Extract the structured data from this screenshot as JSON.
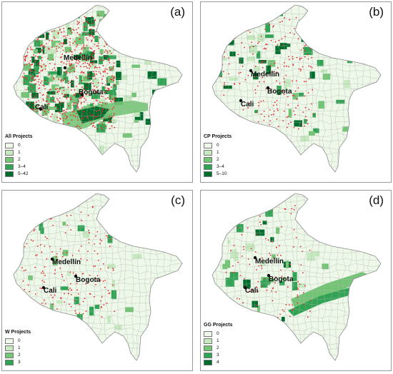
{
  "panels": [
    {
      "label": "(a)",
      "legend_title": "All Projects",
      "legend": [
        {
          "label": "0",
          "color": "#edf8e9"
        },
        {
          "label": "1",
          "color": "#c7e9c0"
        },
        {
          "label": "2",
          "color": "#74c476"
        },
        {
          "label": "3–4",
          "color": "#31a354"
        },
        {
          "label": "5–42",
          "color": "#006d2c"
        }
      ],
      "cities": [
        "Medellín",
        "Bogota",
        "Cali"
      ],
      "level": 0.9,
      "red_density": 0.85,
      "amazon": "patchy"
    },
    {
      "label": "(b)",
      "legend_title": "CP Projects",
      "legend": [
        {
          "label": "0",
          "color": "#edf8e9"
        },
        {
          "label": "1",
          "color": "#c7e9c0"
        },
        {
          "label": "2",
          "color": "#74c476"
        },
        {
          "label": "3–4",
          "color": "#31a354"
        },
        {
          "label": "5–10",
          "color": "#006d2c"
        }
      ],
      "cities": [
        "Medellín",
        "Bogota",
        "Cali"
      ],
      "level": 0.3,
      "red_density": 0.25,
      "amazon": "none"
    },
    {
      "label": "(c)",
      "legend_title": "W Projects",
      "legend": [
        {
          "label": "0",
          "color": "#edf8e9"
        },
        {
          "label": "1",
          "color": "#c7e9c0"
        },
        {
          "label": "2",
          "color": "#74c476"
        },
        {
          "label": "3",
          "color": "#31a354"
        }
      ],
      "cities": [
        "Medellín",
        "Bogota",
        "Cali"
      ],
      "level": 0.12,
      "red_density": 0.22,
      "amazon": "none"
    },
    {
      "label": "(d)",
      "legend_title": "GG Projects",
      "legend": [
        {
          "label": "0",
          "color": "#edf8e9"
        },
        {
          "label": "1",
          "color": "#c7e9c0"
        },
        {
          "label": "2",
          "color": "#74c476"
        },
        {
          "label": "3",
          "color": "#31a354"
        },
        {
          "label": "4",
          "color": "#006d2c"
        }
      ],
      "cities": [
        "Medellín",
        "Bogota",
        "Cali"
      ],
      "level": 0.2,
      "red_density": 0.15,
      "amazon": "band"
    }
  ],
  "colors": {
    "base_fill": "#edf8e9",
    "boundary": "#b5b5b5",
    "project_dot": "#e8262b",
    "city_dot": "#111111"
  }
}
